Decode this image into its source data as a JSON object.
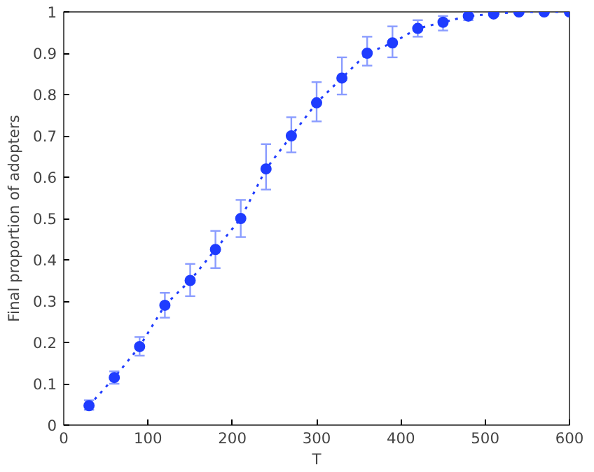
{
  "chart_data": {
    "type": "line",
    "xlabel": "T",
    "ylabel": "Final proportion of adopters",
    "x": [
      30,
      60,
      90,
      120,
      150,
      180,
      210,
      240,
      270,
      300,
      330,
      360,
      390,
      420,
      450,
      480,
      510,
      540,
      570,
      600
    ],
    "series": [
      {
        "color": "#1f3cff",
        "values": [
          0.047,
          0.115,
          0.19,
          0.29,
          0.35,
          0.425,
          0.5,
          0.62,
          0.7,
          0.78,
          0.84,
          0.9,
          0.925,
          0.96,
          0.975,
          0.99,
          0.995,
          1.0,
          1.0,
          1.0
        ],
        "errors": [
          [
            0.037,
            0.06
          ],
          [
            0.1,
            0.13
          ],
          [
            0.168,
            0.213
          ],
          [
            0.26,
            0.32
          ],
          [
            0.312,
            0.39
          ],
          [
            0.38,
            0.47
          ],
          [
            0.455,
            0.545
          ],
          [
            0.57,
            0.68
          ],
          [
            0.66,
            0.745
          ],
          [
            0.735,
            0.83
          ],
          [
            0.8,
            0.89
          ],
          [
            0.87,
            0.94
          ],
          [
            0.89,
            0.965
          ],
          [
            0.94,
            0.98
          ],
          [
            0.955,
            0.99
          ],
          [
            0.98,
            1.0
          ],
          null,
          null,
          null,
          null
        ]
      }
    ],
    "xlim": [
      0,
      600
    ],
    "ylim": [
      0,
      1
    ],
    "xticks": [
      0,
      100,
      200,
      300,
      400,
      500,
      600
    ],
    "yticks": [
      0,
      0.1,
      0.2,
      0.3,
      0.4,
      0.5,
      0.6,
      0.7,
      0.8,
      0.9,
      1
    ],
    "grid": false,
    "marker": "circle",
    "line_style": "dotted"
  }
}
